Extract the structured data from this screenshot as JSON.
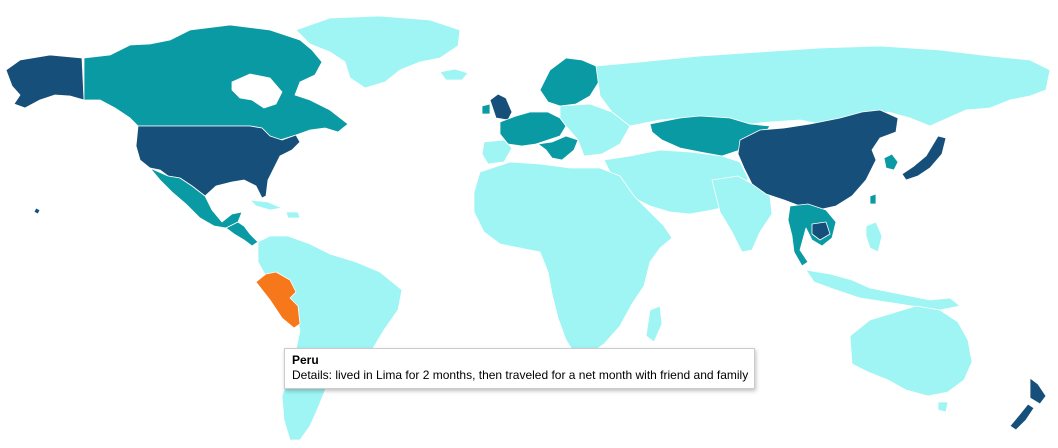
{
  "map": {
    "colors": {
      "ocean": "#ffffff",
      "level_default": "#9ff4f4",
      "level_mid": "#0a9aa3",
      "level_high": "#16507a",
      "highlight": "#f6781b",
      "border": "#ffffff"
    },
    "highlighted_country": "Peru",
    "visited_high": [
      "USA",
      "Alaska",
      "Hawaii",
      "China",
      "Japan",
      "Cambodia",
      "New Zealand",
      "United Kingdom"
    ],
    "visited_mid": [
      "Canada",
      "Mexico",
      "Guatemala",
      "Sweden",
      "Norway",
      "Finland",
      "France",
      "Germany",
      "Italy",
      "Austria",
      "Croatia",
      "Ireland",
      "Kazakhstan",
      "Thailand",
      "Vietnam",
      "South Korea",
      "Taiwan"
    ]
  },
  "tooltip": {
    "title": "Peru",
    "details": "Details: lived in Lima for 2 months, then traveled for a net month with friend and family"
  }
}
